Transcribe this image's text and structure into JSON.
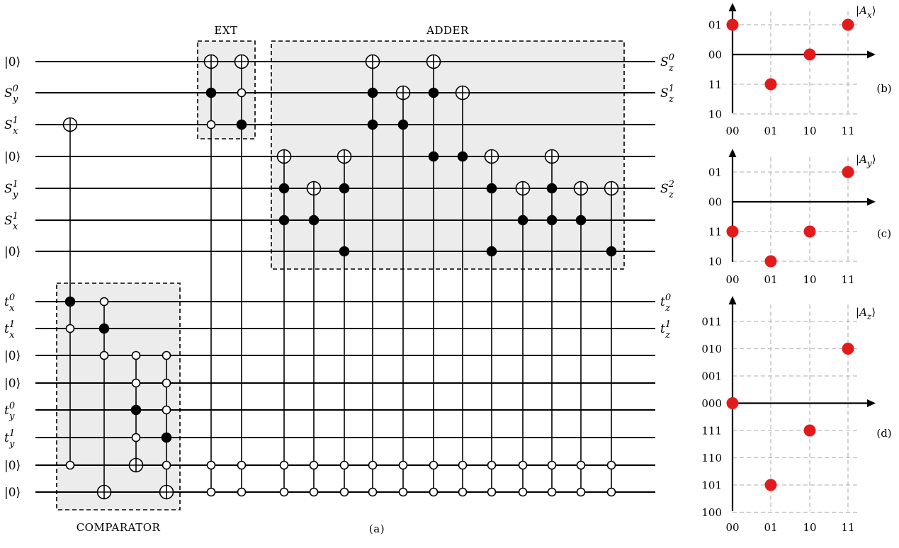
{
  "circuit": {
    "input_labels": [
      {
        "main": "|0⟩"
      },
      {
        "main": "S",
        "sub": "y",
        "sup": "0"
      },
      {
        "main": "S",
        "sub": "x",
        "sup": "1"
      },
      {
        "main": "|0⟩"
      },
      {
        "main": "S",
        "sub": "y",
        "sup": "1"
      },
      {
        "main": "S",
        "sub": "x",
        "sup": "1"
      },
      {
        "main": "|0⟩"
      },
      {
        "main": "t",
        "sub": "x",
        "sup": "0"
      },
      {
        "main": "t",
        "sub": "x",
        "sup": "1"
      },
      {
        "main": "|0⟩"
      },
      {
        "main": "|0⟩"
      },
      {
        "main": "t",
        "sub": "y",
        "sup": "0"
      },
      {
        "main": "t",
        "sub": "y",
        "sup": "1"
      },
      {
        "main": "|0⟩"
      },
      {
        "main": "|0⟩"
      }
    ],
    "output_labels": [
      {
        "wire": 0,
        "main": "S",
        "sub": "z",
        "sup": "0"
      },
      {
        "wire": 1,
        "main": "S",
        "sub": "z",
        "sup": "1"
      },
      {
        "wire": 4,
        "main": "S",
        "sub": "z",
        "sup": "2"
      },
      {
        "wire": 7,
        "main": "t",
        "sub": "z",
        "sup": "0"
      },
      {
        "wire": 8,
        "main": "t",
        "sub": "z",
        "sup": "1"
      }
    ],
    "boxes": {
      "ext": "EXT",
      "adder": "ADDER",
      "comparator": "COMPARATOR"
    },
    "caption": "(a)",
    "gates": [
      {
        "target": 2,
        "controls": [
          {
            "w": 7,
            "v": 1
          },
          {
            "w": 8,
            "v": 0
          },
          {
            "w": 13,
            "v": 0
          }
        ]
      },
      {
        "target": 14,
        "controls": [
          {
            "w": 7,
            "v": 0
          },
          {
            "w": 8,
            "v": 1
          },
          {
            "w": 9,
            "v": 0
          }
        ]
      },
      {
        "target": 13,
        "controls": [
          {
            "w": 9,
            "v": 0
          },
          {
            "w": 10,
            "v": 0
          },
          {
            "w": 11,
            "v": 1
          },
          {
            "w": 12,
            "v": 0
          }
        ]
      },
      {
        "target": 14,
        "controls": [
          {
            "w": 9,
            "v": 0
          },
          {
            "w": 10,
            "v": 0
          },
          {
            "w": 11,
            "v": 0
          },
          {
            "w": 12,
            "v": 1
          },
          {
            "w": 13,
            "v": 0
          }
        ]
      },
      {
        "target": 0,
        "controls": [
          {
            "w": 1,
            "v": 1
          },
          {
            "w": 2,
            "v": 0
          },
          {
            "w": 13,
            "v": 0
          },
          {
            "w": 14,
            "v": 0
          }
        ]
      },
      {
        "target": 0,
        "controls": [
          {
            "w": 1,
            "v": 0
          },
          {
            "w": 2,
            "v": 1
          },
          {
            "w": 13,
            "v": 0
          },
          {
            "w": 14,
            "v": 0
          }
        ]
      },
      {
        "target": 3,
        "controls": [
          {
            "w": 4,
            "v": 1
          },
          {
            "w": 5,
            "v": 1
          },
          {
            "w": 13,
            "v": 0
          },
          {
            "w": 14,
            "v": 0
          }
        ]
      },
      {
        "target": 4,
        "controls": [
          {
            "w": 5,
            "v": 1
          },
          {
            "w": 13,
            "v": 0
          },
          {
            "w": 14,
            "v": 0
          }
        ]
      },
      {
        "target": 3,
        "controls": [
          {
            "w": 4,
            "v": 1
          },
          {
            "w": 6,
            "v": 1
          },
          {
            "w": 13,
            "v": 0
          },
          {
            "w": 14,
            "v": 0
          }
        ]
      },
      {
        "target": 0,
        "controls": [
          {
            "w": 1,
            "v": 1
          },
          {
            "w": 2,
            "v": 1
          },
          {
            "w": 13,
            "v": 0
          },
          {
            "w": 14,
            "v": 0
          }
        ]
      },
      {
        "target": 1,
        "controls": [
          {
            "w": 2,
            "v": 1
          },
          {
            "w": 13,
            "v": 0
          },
          {
            "w": 14,
            "v": 0
          }
        ]
      },
      {
        "target": 0,
        "controls": [
          {
            "w": 1,
            "v": 1
          },
          {
            "w": 3,
            "v": 1
          },
          {
            "w": 13,
            "v": 0
          },
          {
            "w": 14,
            "v": 0
          }
        ]
      },
      {
        "target": 1,
        "controls": [
          {
            "w": 3,
            "v": 1
          },
          {
            "w": 13,
            "v": 0
          },
          {
            "w": 14,
            "v": 0
          }
        ]
      },
      {
        "target": 3,
        "controls": [
          {
            "w": 4,
            "v": 1
          },
          {
            "w": 6,
            "v": 1
          },
          {
            "w": 13,
            "v": 0
          },
          {
            "w": 14,
            "v": 0
          }
        ]
      },
      {
        "target": 4,
        "controls": [
          {
            "w": 5,
            "v": 1
          },
          {
            "w": 13,
            "v": 0
          },
          {
            "w": 14,
            "v": 0
          }
        ]
      },
      {
        "target": 3,
        "controls": [
          {
            "w": 4,
            "v": 1
          },
          {
            "w": 5,
            "v": 1
          },
          {
            "w": 13,
            "v": 0
          },
          {
            "w": 14,
            "v": 0
          }
        ]
      },
      {
        "target": 4,
        "controls": [
          {
            "w": 5,
            "v": 1
          },
          {
            "w": 13,
            "v": 0
          },
          {
            "w": 14,
            "v": 0
          }
        ]
      },
      {
        "target": 4,
        "controls": [
          {
            "w": 6,
            "v": 1
          },
          {
            "w": 13,
            "v": 0
          },
          {
            "w": 14,
            "v": 0
          }
        ]
      }
    ]
  },
  "chart_data": [
    {
      "type": "scatter",
      "panel": "(b)",
      "legend": "|A",
      "legend_sub": "x",
      "x_ticks": [
        "00",
        "01",
        "10",
        "11"
      ],
      "y_ticks": [
        "01",
        "00",
        "11",
        "10"
      ],
      "points": [
        [
          "00",
          "01"
        ],
        [
          "01",
          "11"
        ],
        [
          "10",
          "00"
        ],
        [
          "11",
          "01"
        ]
      ],
      "point_color": "#e31a1c"
    },
    {
      "type": "scatter",
      "panel": "(c)",
      "legend": "|A",
      "legend_sub": "y",
      "x_ticks": [
        "00",
        "01",
        "10",
        "11"
      ],
      "y_ticks": [
        "01",
        "00",
        "11",
        "10"
      ],
      "points": [
        [
          "00",
          "11"
        ],
        [
          "01",
          "10"
        ],
        [
          "10",
          "11"
        ],
        [
          "11",
          "01"
        ]
      ],
      "point_color": "#e31a1c"
    },
    {
      "type": "scatter",
      "panel": "(d)",
      "legend": "|A",
      "legend_sub": "z",
      "x_ticks": [
        "00",
        "01",
        "10",
        "11"
      ],
      "y_ticks": [
        "011",
        "010",
        "001",
        "000",
        "111",
        "110",
        "101",
        "100"
      ],
      "points": [
        [
          "00",
          "000"
        ],
        [
          "01",
          "101"
        ],
        [
          "10",
          "111"
        ],
        [
          "11",
          "010"
        ]
      ],
      "point_color": "#e31a1c"
    }
  ]
}
